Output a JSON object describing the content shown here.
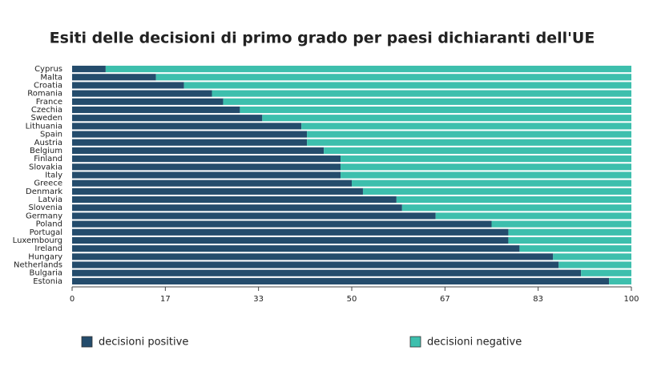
{
  "chart_data": {
    "type": "stacked-bar-horizontal",
    "title": "Esiti delle decisioni di primo grado per paesi dichiaranti dell'UE",
    "categories": [
      "Cyprus",
      "Malta",
      "Croatia",
      "Romania",
      "France",
      "Czechia",
      "Sweden",
      "Lithuania",
      "Spain",
      "Austria",
      "Belgium",
      "Finland",
      "Slovakia",
      "Italy",
      "Greece",
      "Denmark",
      "Latvia",
      "Slovenia",
      "Germany",
      "Poland",
      "Portugal",
      "Luxembourg",
      "Ireland",
      "Hungary",
      "Netherlands",
      "Bulgaria",
      "Estonia"
    ],
    "series": [
      {
        "name": "decisioni positive",
        "color": "#244c6c",
        "values": [
          6,
          15,
          20,
          25,
          27,
          30,
          34,
          41,
          42,
          42,
          45,
          48,
          48,
          48,
          50,
          52,
          58,
          59,
          65,
          75,
          78,
          78,
          80,
          86,
          87,
          91,
          96
        ]
      },
      {
        "name": "decisioni negative",
        "color": "#3dbfad",
        "values": [
          94,
          85,
          80,
          75,
          73,
          70,
          66,
          59,
          58,
          58,
          55,
          52,
          52,
          52,
          50,
          48,
          42,
          41,
          35,
          25,
          22,
          22,
          20,
          14,
          13,
          9,
          4
        ]
      }
    ],
    "xlim": [
      0,
      100
    ],
    "xticks": [
      0,
      {
        "value": 16.67,
        "label": "17"
      },
      {
        "value": 33.33,
        "label": "33"
      },
      50,
      {
        "value": 66.67,
        "label": "67"
      },
      {
        "value": 83.33,
        "label": "83"
      },
      100
    ]
  }
}
